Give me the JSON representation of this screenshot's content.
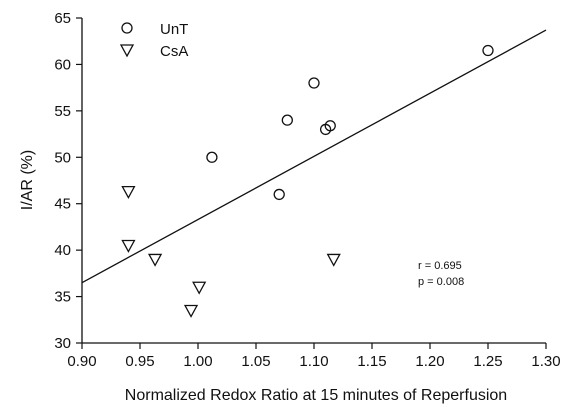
{
  "chart_data": {
    "type": "scatter",
    "title": "",
    "xlabel": "Normalized Redox Ratio at 15 minutes of Reperfusion",
    "ylabel": "I/AR (%)",
    "xlim": [
      0.9,
      1.3
    ],
    "ylim": [
      30,
      65
    ],
    "xticks": [
      "0.90",
      "0.95",
      "1.00",
      "1.05",
      "1.10",
      "1.15",
      "1.20",
      "1.25",
      "1.30"
    ],
    "yticks": [
      "30",
      "35",
      "40",
      "45",
      "50",
      "55",
      "60",
      "65"
    ],
    "grid": false,
    "legend_position": "top-left",
    "series": [
      {
        "name": "UnT",
        "marker": "circle",
        "points": [
          {
            "x": 1.012,
            "y": 50.0
          },
          {
            "x": 1.07,
            "y": 46.0
          },
          {
            "x": 1.077,
            "y": 54.0
          },
          {
            "x": 1.1,
            "y": 58.0
          },
          {
            "x": 1.11,
            "y": 53.0
          },
          {
            "x": 1.114,
            "y": 53.4
          },
          {
            "x": 1.25,
            "y": 61.5
          }
        ]
      },
      {
        "name": "CsA",
        "marker": "triangle-down",
        "points": [
          {
            "x": 0.94,
            "y": 46.3
          },
          {
            "x": 0.94,
            "y": 40.5
          },
          {
            "x": 0.963,
            "y": 39.0
          },
          {
            "x": 0.994,
            "y": 33.5
          },
          {
            "x": 1.001,
            "y": 36.0
          },
          {
            "x": 1.117,
            "y": 39.0
          }
        ]
      }
    ],
    "regression_line": {
      "x": [
        0.9,
        1.3
      ],
      "y": [
        36.5,
        63.7
      ]
    },
    "annotations": [
      "r = 0.695",
      "p = 0.008"
    ]
  }
}
